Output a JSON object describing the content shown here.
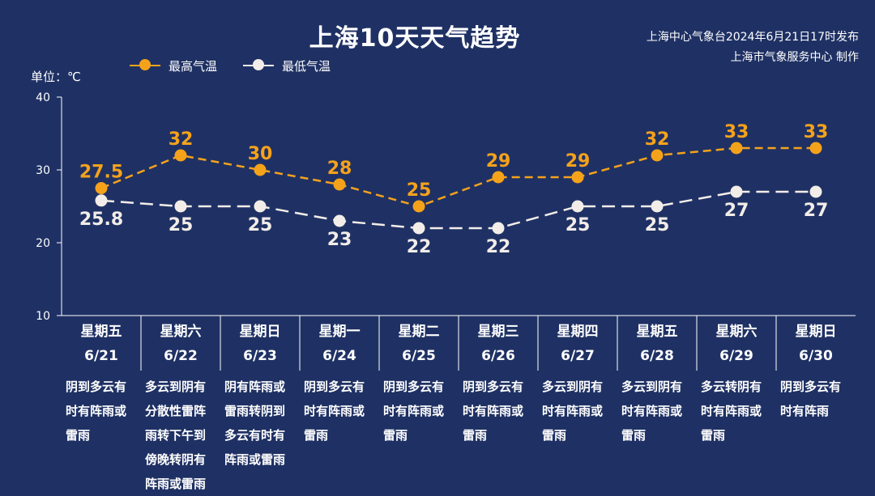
{
  "title": "上海10天天气趋势",
  "issuer": {
    "line1": "上海中心气象台2024年6月21日17时发布",
    "line2": "上海市气象服务中心 制作"
  },
  "unit_label": "单位：℃",
  "colors": {
    "background": "#1f3164",
    "high": "#f5a21b",
    "low": "#f2ede8",
    "axis": "#ffffff"
  },
  "chart_data": {
    "type": "line",
    "ylim": [
      10,
      40
    ],
    "yticks": [
      10,
      20,
      30,
      40
    ],
    "categories": [
      "6/21",
      "6/22",
      "6/23",
      "6/24",
      "6/25",
      "6/26",
      "6/27",
      "6/28",
      "6/29",
      "6/30"
    ],
    "series": [
      {
        "name": "最高气温",
        "values": [
          27.5,
          32,
          30,
          28,
          25,
          29,
          29,
          32,
          33,
          33
        ],
        "labels": [
          "27.5",
          "32",
          "30",
          "28",
          "25",
          "29",
          "29",
          "32",
          "33",
          "33"
        ],
        "color": "#f5a21b",
        "label_position": "above"
      },
      {
        "name": "最低气温",
        "values": [
          25.8,
          25,
          25,
          23,
          22,
          22,
          25,
          25,
          27,
          27
        ],
        "labels": [
          "25.8",
          "25",
          "25",
          "23",
          "22",
          "22",
          "25",
          "25",
          "27",
          "27"
        ],
        "color": "#f2ede8",
        "label_position": "below"
      }
    ],
    "grid": false,
    "legend_position": "top-left"
  },
  "days": [
    {
      "weekday": "星期五",
      "date": "6/21",
      "weather": [
        "阴到多云有",
        "时有阵雨或",
        "雷雨"
      ]
    },
    {
      "weekday": "星期六",
      "date": "6/22",
      "weather": [
        "多云到阴有",
        "分散性雷阵",
        "雨转下午到",
        "傍晚转阴有",
        "阵雨或雷雨"
      ]
    },
    {
      "weekday": "星期日",
      "date": "6/23",
      "weather": [
        "阴有阵雨或",
        "雷雨转阴到",
        "多云有时有",
        "阵雨或雷雨"
      ]
    },
    {
      "weekday": "星期一",
      "date": "6/24",
      "weather": [
        "阴到多云有",
        "时有阵雨或",
        "雷雨"
      ]
    },
    {
      "weekday": "星期二",
      "date": "6/25",
      "weather": [
        "阴到多云有",
        "时有阵雨或",
        "雷雨"
      ]
    },
    {
      "weekday": "星期三",
      "date": "6/26",
      "weather": [
        "阴到多云有",
        "时有阵雨或",
        "雷雨"
      ]
    },
    {
      "weekday": "星期四",
      "date": "6/27",
      "weather": [
        "多云到阴有",
        "时有阵雨或",
        "雷雨"
      ]
    },
    {
      "weekday": "星期五",
      "date": "6/28",
      "weather": [
        "多云到阴有",
        "时有阵雨或",
        "雷雨"
      ]
    },
    {
      "weekday": "星期六",
      "date": "6/29",
      "weather": [
        "多云转阴有",
        "时有阵雨或",
        "雷雨"
      ]
    },
    {
      "weekday": "星期日",
      "date": "6/30",
      "weather": [
        "阴到多云有",
        "时有阵雨"
      ]
    }
  ]
}
